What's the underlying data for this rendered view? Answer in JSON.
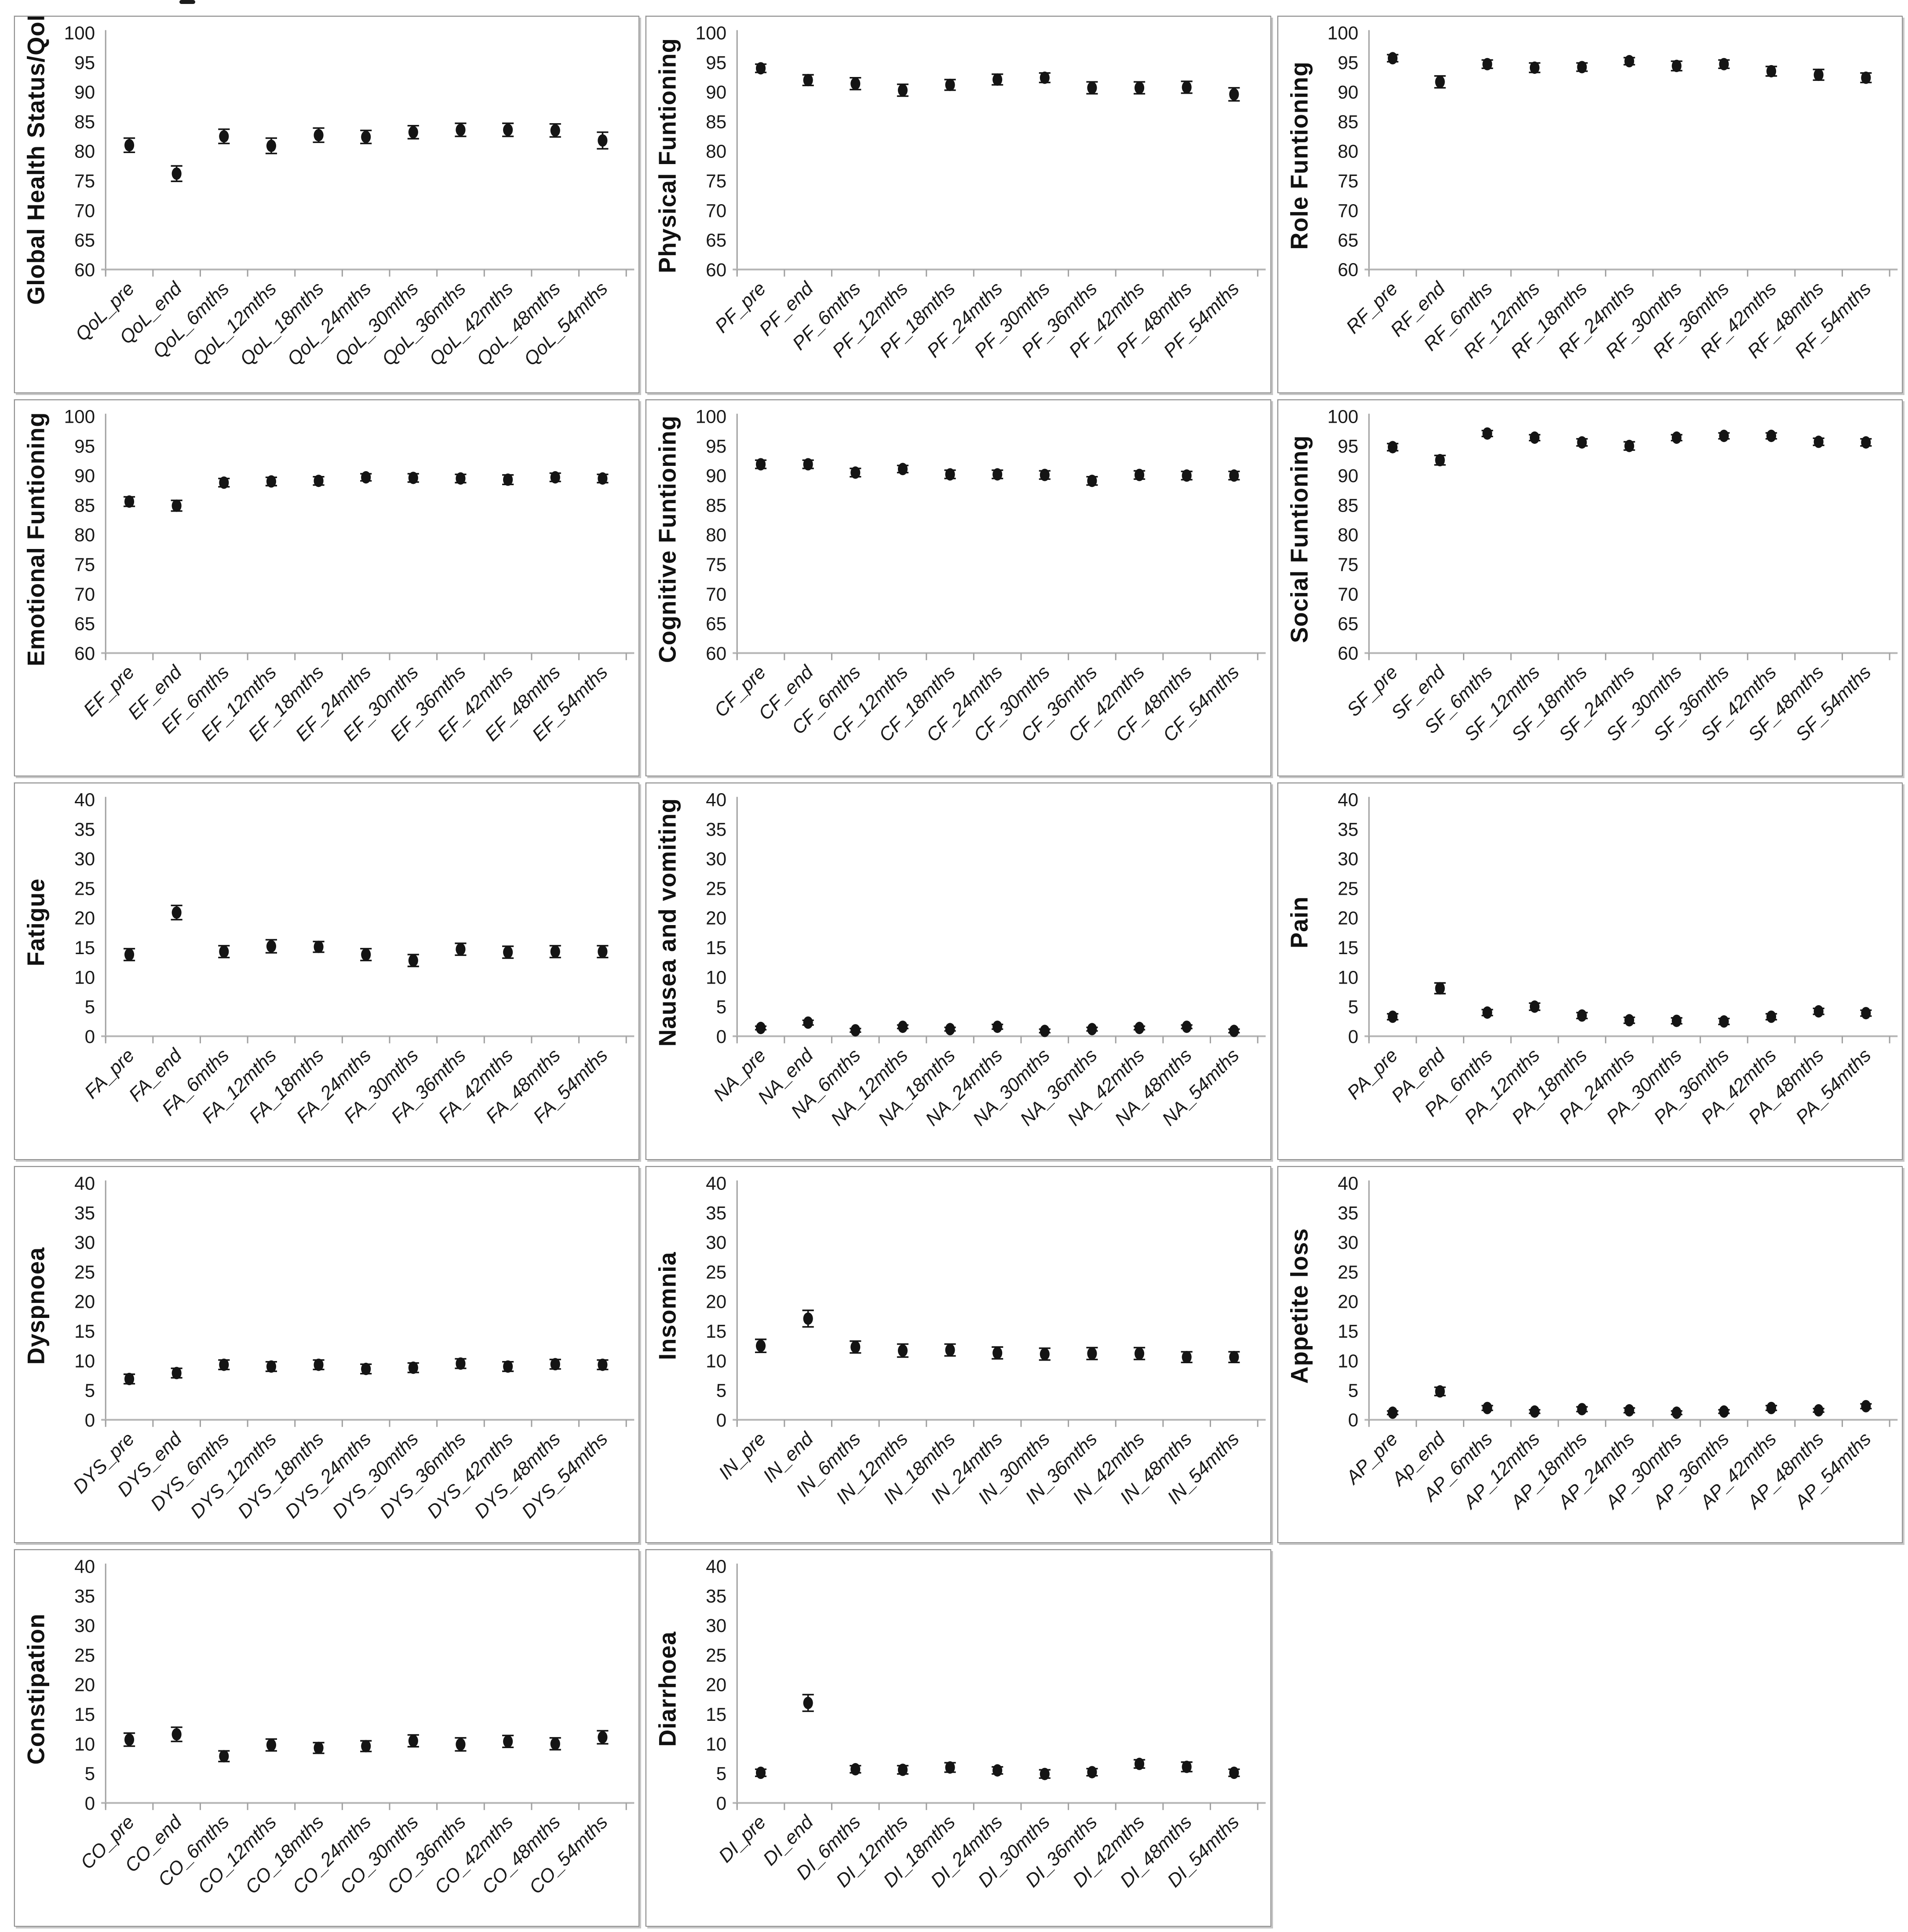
{
  "page": {
    "background": "#ffffff",
    "stray_mark": "-"
  },
  "style": {
    "point_color": "#141414",
    "axis_color": "#a0a0a0",
    "text_color": "#1a1a1a",
    "panel_border": "#8f8f8f"
  },
  "chart_data": [
    {
      "id": "qol",
      "type": "scatter",
      "title": "",
      "xlabel": "",
      "ylabel": "Global Health Status/QoL",
      "ylim": [
        60,
        100
      ],
      "ytick_step": 5,
      "grid": false,
      "legend": "none",
      "categories": [
        "QoL_pre",
        "QoL_end",
        "QoL_6mths",
        "QoL_12mths",
        "QoL_18mths",
        "QoL_24mths",
        "QoL_30mths",
        "QoL_36mths",
        "QoL_42mths",
        "QoL_48mths",
        "QoL_54mths"
      ],
      "values": [
        81.0,
        76.2,
        82.5,
        80.9,
        82.7,
        82.4,
        83.2,
        83.6,
        83.6,
        83.5,
        81.8
      ],
      "errors": [
        1.2,
        1.3,
        1.2,
        1.3,
        1.2,
        1.1,
        1.1,
        1.1,
        1.1,
        1.1,
        1.4
      ]
    },
    {
      "id": "pf",
      "type": "scatter",
      "title": "",
      "xlabel": "",
      "ylabel": "Physical Funtioning",
      "ylim": [
        60,
        100
      ],
      "ytick_step": 5,
      "grid": false,
      "legend": "none",
      "categories": [
        "PF_pre",
        "PF_end",
        "PF_6mths",
        "PF_12mths",
        "PF_18mths",
        "PF_24mths",
        "PF_30mths",
        "PF_36mths",
        "PF_42mths",
        "PF_48mths",
        "PF_54mths"
      ],
      "values": [
        94.0,
        92.0,
        91.4,
        90.3,
        91.2,
        92.1,
        92.4,
        90.7,
        90.7,
        90.8,
        89.6
      ],
      "errors": [
        0.7,
        0.9,
        1.0,
        1.0,
        0.9,
        0.9,
        0.8,
        1.0,
        1.0,
        1.0,
        1.1
      ]
    },
    {
      "id": "rf",
      "type": "scatter",
      "title": "",
      "xlabel": "",
      "ylabel": "Role Funtioning",
      "ylim": [
        60,
        100
      ],
      "ytick_step": 5,
      "grid": false,
      "legend": "none",
      "categories": [
        "RF_pre",
        "RF_end",
        "RF_6mths",
        "RF_12mths",
        "RF_18mths",
        "RF_24mths",
        "RF_30mths",
        "RF_36mths",
        "RF_42mths",
        "RF_48mths",
        "RF_54mths"
      ],
      "values": [
        95.7,
        91.7,
        94.7,
        94.1,
        94.2,
        95.2,
        94.4,
        94.7,
        93.5,
        92.9,
        92.4
      ],
      "errors": [
        0.6,
        1.0,
        0.7,
        0.8,
        0.7,
        0.6,
        0.8,
        0.7,
        0.8,
        0.9,
        0.8
      ]
    },
    {
      "id": "ef",
      "type": "scatter",
      "title": "",
      "xlabel": "",
      "ylabel": "Emotional Funtioning",
      "ylim": [
        60,
        100
      ],
      "ytick_step": 5,
      "grid": false,
      "legend": "none",
      "categories": [
        "EF_pre",
        "EF_end",
        "EF_6mths",
        "EF_12mths",
        "EF_18mths",
        "EF_24mths",
        "EF_30mths",
        "EF_36mths",
        "EF_42mths",
        "EF_48mths",
        "EF_54mths"
      ],
      "values": [
        85.6,
        84.9,
        88.8,
        89.0,
        89.1,
        89.7,
        89.6,
        89.5,
        89.3,
        89.7,
        89.5
      ],
      "errors": [
        0.8,
        0.9,
        0.7,
        0.7,
        0.7,
        0.6,
        0.7,
        0.7,
        0.8,
        0.7,
        0.7
      ]
    },
    {
      "id": "cf",
      "type": "scatter",
      "title": "",
      "xlabel": "",
      "ylabel": "Cognitive Funtioning",
      "ylim": [
        60,
        100
      ],
      "ytick_step": 5,
      "grid": false,
      "legend": "none",
      "categories": [
        "CF_pre",
        "CF_end",
        "CF_6mths",
        "CF_12mths",
        "CF_18mths",
        "CF_24mths",
        "CF_30mths",
        "CF_36mths",
        "CF_42mths",
        "CF_48mths",
        "CF_54mths"
      ],
      "values": [
        91.9,
        91.9,
        90.5,
        91.1,
        90.2,
        90.2,
        90.1,
        89.1,
        90.1,
        90.0,
        90.0
      ],
      "errors": [
        0.7,
        0.7,
        0.7,
        0.6,
        0.7,
        0.7,
        0.7,
        0.7,
        0.7,
        0.7,
        0.7
      ]
    },
    {
      "id": "sf",
      "type": "scatter",
      "title": "",
      "xlabel": "",
      "ylabel": "Social Funtioning",
      "ylim": [
        60,
        100
      ],
      "ytick_step": 5,
      "grid": false,
      "legend": "none",
      "categories": [
        "SF_pre",
        "SF_end",
        "SF_6mths",
        "SF_12mths",
        "SF_18mths",
        "SF_24mths",
        "SF_30mths",
        "SF_36mths",
        "SF_42mths",
        "SF_48mths",
        "SF_54mths"
      ],
      "values": [
        94.8,
        92.6,
        97.1,
        96.4,
        95.6,
        95.0,
        96.4,
        96.7,
        96.7,
        95.7,
        95.6
      ],
      "errors": [
        0.6,
        0.8,
        0.5,
        0.5,
        0.6,
        0.7,
        0.5,
        0.5,
        0.5,
        0.6,
        0.6
      ]
    },
    {
      "id": "fa",
      "type": "scatter",
      "title": "",
      "xlabel": "",
      "ylabel": "Fatigue",
      "ylim": [
        0,
        40
      ],
      "ytick_step": 5,
      "grid": false,
      "legend": "none",
      "categories": [
        "FA_pre",
        "FA_end",
        "FA_6mths",
        "FA_12mths",
        "FA_18mths",
        "FA_24mths",
        "FA_30mths",
        "FA_36mths",
        "FA_42mths",
        "FA_48mths",
        "FA_54mths"
      ],
      "values": [
        13.8,
        20.9,
        14.3,
        15.2,
        15.1,
        13.8,
        12.8,
        14.7,
        14.2,
        14.3,
        14.3
      ],
      "errors": [
        1.0,
        1.2,
        1.0,
        1.1,
        0.9,
        1.0,
        1.0,
        1.0,
        1.0,
        1.0,
        1.0
      ]
    },
    {
      "id": "na",
      "type": "scatter",
      "title": "",
      "xlabel": "",
      "ylabel": "Nausea and vomiting",
      "ylim": [
        0,
        40
      ],
      "ytick_step": 5,
      "grid": false,
      "legend": "none",
      "categories": [
        "NA_pre",
        "NA_end",
        "NA_6mths",
        "NA_12mths",
        "NA_18mths",
        "NA_24mths",
        "NA_30mths",
        "NA_36mths",
        "NA_42mths",
        "NA_48mths",
        "NA_54mths"
      ],
      "values": [
        1.4,
        2.3,
        1.0,
        1.6,
        1.2,
        1.6,
        0.9,
        1.2,
        1.4,
        1.6,
        0.9
      ],
      "errors": [
        0.3,
        0.4,
        0.3,
        0.3,
        0.3,
        0.4,
        0.3,
        0.3,
        0.3,
        0.3,
        0.3
      ]
    },
    {
      "id": "pa",
      "type": "scatter",
      "title": "",
      "xlabel": "",
      "ylabel": "Pain",
      "ylim": [
        0,
        40
      ],
      "ytick_step": 5,
      "grid": false,
      "legend": "none",
      "categories": [
        "PA_pre",
        "PA_end",
        "PA_6mths",
        "PA_12mths",
        "PA_18mths",
        "PA_24mths",
        "PA_30mths",
        "PA_36mths",
        "PA_42mths",
        "PA_48mths",
        "PA_54mths"
      ],
      "values": [
        3.3,
        8.1,
        4.0,
        5.0,
        3.5,
        2.7,
        2.6,
        2.5,
        3.3,
        4.2,
        3.9
      ],
      "errors": [
        0.5,
        0.9,
        0.5,
        0.6,
        0.5,
        0.5,
        0.5,
        0.5,
        0.5,
        0.5,
        0.5
      ]
    },
    {
      "id": "dys",
      "type": "scatter",
      "title": "",
      "xlabel": "",
      "ylabel": "Dyspnoea",
      "ylim": [
        0,
        40
      ],
      "ytick_step": 5,
      "grid": false,
      "legend": "none",
      "categories": [
        "DYS_pre",
        "DYS_end",
        "DYS_6mths",
        "DYS_12mths",
        "DYS_18mths",
        "DYS_24mths",
        "DYS_30mths",
        "DYS_36mths",
        "DYS_42mths",
        "DYS_48mths",
        "DYS_54mths"
      ],
      "values": [
        6.9,
        7.9,
        9.3,
        9.0,
        9.3,
        8.6,
        8.8,
        9.5,
        9.0,
        9.4,
        9.3
      ],
      "errors": [
        0.8,
        0.8,
        0.8,
        0.8,
        0.8,
        0.8,
        0.8,
        0.8,
        0.8,
        0.8,
        0.8
      ]
    },
    {
      "id": "in",
      "type": "scatter",
      "title": "",
      "xlabel": "",
      "ylabel": "Insomnia",
      "ylim": [
        0,
        40
      ],
      "ytick_step": 5,
      "grid": false,
      "legend": "none",
      "categories": [
        "IN_pre",
        "IN_end",
        "IN_6mths",
        "IN_12mths",
        "IN_18mths",
        "IN_24mths",
        "IN_30mths",
        "IN_36mths",
        "IN_42mths",
        "IN_48mths",
        "IN_54mths"
      ],
      "values": [
        12.5,
        17.1,
        12.3,
        11.7,
        11.8,
        11.3,
        11.1,
        11.2,
        11.2,
        10.6,
        10.6
      ],
      "errors": [
        1.1,
        1.4,
        1.0,
        1.1,
        1.0,
        1.0,
        1.0,
        1.0,
        1.0,
        0.9,
        0.9
      ]
    },
    {
      "id": "ap",
      "type": "scatter",
      "title": "",
      "xlabel": "",
      "ylabel": "Appetite loss",
      "ylim": [
        0,
        40
      ],
      "ytick_step": 5,
      "grid": false,
      "legend": "none",
      "categories": [
        "AP_pre",
        "Ap_end",
        "AP_6mths",
        "AP_12mths",
        "AP_18mths",
        "AP_24mths",
        "AP_30mths",
        "AP_36mths",
        "AP_42mths",
        "AP_48mths",
        "AP_54mths"
      ],
      "values": [
        1.2,
        4.8,
        2.0,
        1.4,
        1.8,
        1.6,
        1.2,
        1.4,
        2.0,
        1.6,
        2.3
      ],
      "errors": [
        0.3,
        0.7,
        0.4,
        0.3,
        0.4,
        0.4,
        0.3,
        0.3,
        0.4,
        0.3,
        0.4
      ]
    },
    {
      "id": "co",
      "type": "scatter",
      "title": "",
      "xlabel": "",
      "ylabel": "Constipation",
      "ylim": [
        0,
        40
      ],
      "ytick_step": 5,
      "grid": false,
      "legend": "none",
      "categories": [
        "CO_pre",
        "CO_end",
        "CO_6mths",
        "CO_12mths",
        "CO_18mths",
        "CO_24mths",
        "CO_30mths",
        "CO_36mths",
        "CO_42mths",
        "CO_48mths",
        "CO_54mths"
      ],
      "values": [
        10.7,
        11.6,
        7.9,
        9.8,
        9.3,
        9.6,
        10.5,
        9.9,
        10.4,
        10.0,
        11.1
      ],
      "errors": [
        1.1,
        1.2,
        0.9,
        1.0,
        0.9,
        0.9,
        1.0,
        1.1,
        1.0,
        1.0,
        1.1
      ]
    },
    {
      "id": "di",
      "type": "scatter",
      "title": "",
      "xlabel": "",
      "ylabel": "Diarrhoea",
      "ylim": [
        0,
        40
      ],
      "ytick_step": 5,
      "grid": false,
      "legend": "none",
      "categories": [
        "DI_pre",
        "DI_end",
        "DI_6mths",
        "DI_12mths",
        "DI_18mths",
        "DI_24mths",
        "DI_30mths",
        "DI_36mths",
        "DI_42mths",
        "DI_48mths",
        "DI_54mths"
      ],
      "values": [
        5.1,
        16.9,
        5.7,
        5.6,
        6.0,
        5.5,
        4.9,
        5.2,
        6.6,
        6.1,
        5.1
      ],
      "errors": [
        0.6,
        1.4,
        0.6,
        0.7,
        0.8,
        0.6,
        0.7,
        0.6,
        0.7,
        0.8,
        0.6
      ]
    }
  ]
}
